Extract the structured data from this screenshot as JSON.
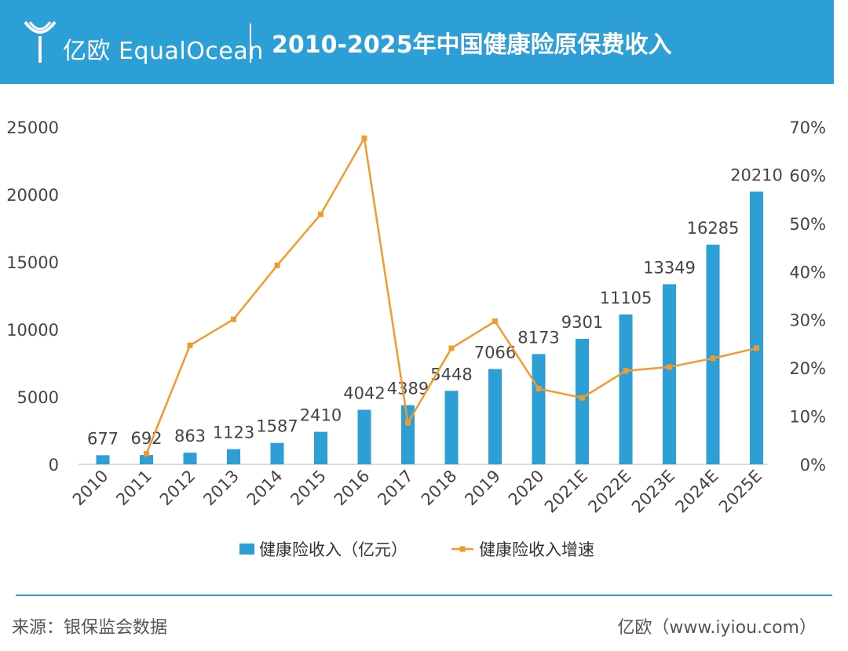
{
  "header": {
    "logo_text": "亿欧",
    "brand": "亿欧 EqualOcean",
    "title": "2010-2025年中国健康险原保费收入"
  },
  "colors": {
    "header_bg": "#2b9fd6",
    "bar": "#2b9fd6",
    "line": "#f39a2e"
  },
  "chart_data": {
    "type": "bar",
    "title": "2010-2025年中国健康险原保费收入",
    "categories": [
      "2010",
      "2011",
      "2012",
      "2013",
      "2014",
      "2015",
      "2016",
      "2017",
      "2018",
      "2019",
      "2020",
      "2021E",
      "2022E",
      "2023E",
      "2024E",
      "2025E"
    ],
    "series": [
      {
        "name": "健康险收入（亿元）",
        "type": "bar",
        "axis": "left",
        "values": [
          677,
          692,
          863,
          1123,
          1587,
          2410,
          4042,
          4389,
          5448,
          7066,
          8173,
          9301,
          11105,
          13349,
          16285,
          20210
        ]
      },
      {
        "name": "健康险收入增速",
        "type": "line",
        "axis": "right",
        "values": [
          null,
          2.2,
          24.7,
          30.1,
          41.3,
          51.9,
          67.7,
          8.6,
          24.1,
          29.7,
          15.7,
          13.8,
          19.4,
          20.2,
          22.0,
          24.1
        ]
      }
    ],
    "left_axis": {
      "ylim": [
        0,
        25000
      ],
      "ticks": [
        "0",
        "5000",
        "10000",
        "15000",
        "20000",
        "25000"
      ]
    },
    "right_axis": {
      "ylim": [
        0,
        70
      ],
      "ticks": [
        "0%",
        "10%",
        "20%",
        "30%",
        "40%",
        "50%",
        "60%",
        "70%"
      ]
    },
    "legend": {
      "position": "bottom",
      "items": [
        "健康险收入（亿元）",
        "健康险收入增速"
      ]
    },
    "grid": false
  },
  "footer": {
    "source": "来源：银保监会数据",
    "website": "亿欧（www.iyiou.com）"
  }
}
